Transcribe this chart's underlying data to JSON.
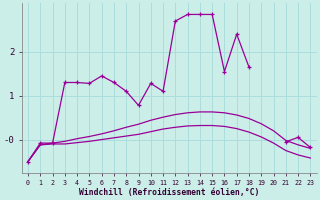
{
  "xlabel": "Windchill (Refroidissement éolien,°C)",
  "background_color": "#cceee8",
  "grid_color": "#aadddd",
  "line_color": "#990099",
  "x": [
    0,
    1,
    2,
    3,
    4,
    5,
    6,
    7,
    8,
    9,
    10,
    11,
    12,
    13,
    14,
    15,
    16,
    17,
    18,
    19,
    20,
    21,
    22,
    23
  ],
  "line_jagged": [
    -0.5,
    -0.08,
    -0.08,
    1.3,
    1.3,
    1.28,
    1.45,
    1.3,
    1.1,
    0.78,
    1.28,
    1.1,
    2.7,
    2.85,
    2.85,
    2.85,
    1.55,
    2.4,
    1.65,
    null,
    null,
    -0.05,
    0.05,
    -0.18
  ],
  "line_upper": [
    -0.5,
    -0.12,
    -0.08,
    -0.04,
    0.02,
    0.07,
    0.13,
    0.2,
    0.28,
    0.35,
    0.44,
    0.51,
    0.57,
    0.61,
    0.63,
    0.63,
    0.61,
    0.56,
    0.48,
    0.36,
    0.2,
    -0.02,
    -0.12,
    -0.2
  ],
  "line_lower": [
    -0.5,
    -0.12,
    -0.1,
    -0.1,
    -0.07,
    -0.04,
    0.0,
    0.04,
    0.08,
    0.12,
    0.18,
    0.24,
    0.28,
    0.31,
    0.32,
    0.32,
    0.3,
    0.25,
    0.17,
    0.06,
    -0.08,
    -0.25,
    -0.35,
    -0.42
  ],
  "ylim": [
    -0.75,
    3.1
  ],
  "ytick_vals": [
    0,
    1,
    2
  ],
  "ytick_labels": [
    "-0",
    "1",
    "2"
  ],
  "xlim": [
    -0.5,
    23.5
  ],
  "xtick_labels": [
    "0",
    "1",
    "2",
    "3",
    "4",
    "5",
    "6",
    "7",
    "8",
    "9",
    "10",
    "11",
    "12",
    "13",
    "14",
    "15",
    "16",
    "17",
    "18",
    "19",
    "20",
    "21",
    "22",
    "23"
  ]
}
